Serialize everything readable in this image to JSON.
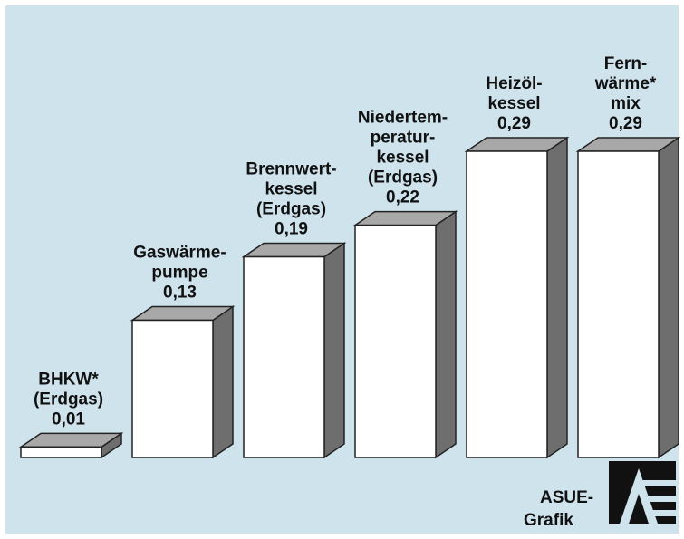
{
  "chart_data": {
    "type": "bar",
    "categories": [
      [
        "BHKW*",
        "(Erdgas)"
      ],
      [
        "Gaswärme-",
        "pumpe"
      ],
      [
        "Brennwert-",
        "kessel",
        "(Erdgas)"
      ],
      [
        "Niedertem-",
        "peratur-",
        "kessel",
        "(Erdgas)"
      ],
      [
        "Heizöl-",
        "kessel"
      ],
      [
        "Fern-",
        "wärme*",
        "mix"
      ]
    ],
    "values": [
      0.01,
      0.13,
      0.19,
      0.22,
      0.29,
      0.29
    ],
    "value_labels": [
      "0,01",
      "0,13",
      "0,19",
      "0,22",
      "0,29",
      "0,29"
    ],
    "ylim": [
      0,
      0.29
    ],
    "grid": false,
    "legend": "none",
    "colors": {
      "background": "#cfe3ed",
      "bar_front": "#ffffff",
      "bar_top": "#a8a8a8",
      "bar_side": "#6e6e6e",
      "outline": "#222222"
    }
  },
  "logo": {
    "line1": "ASUE-",
    "line2": "Grafik"
  }
}
